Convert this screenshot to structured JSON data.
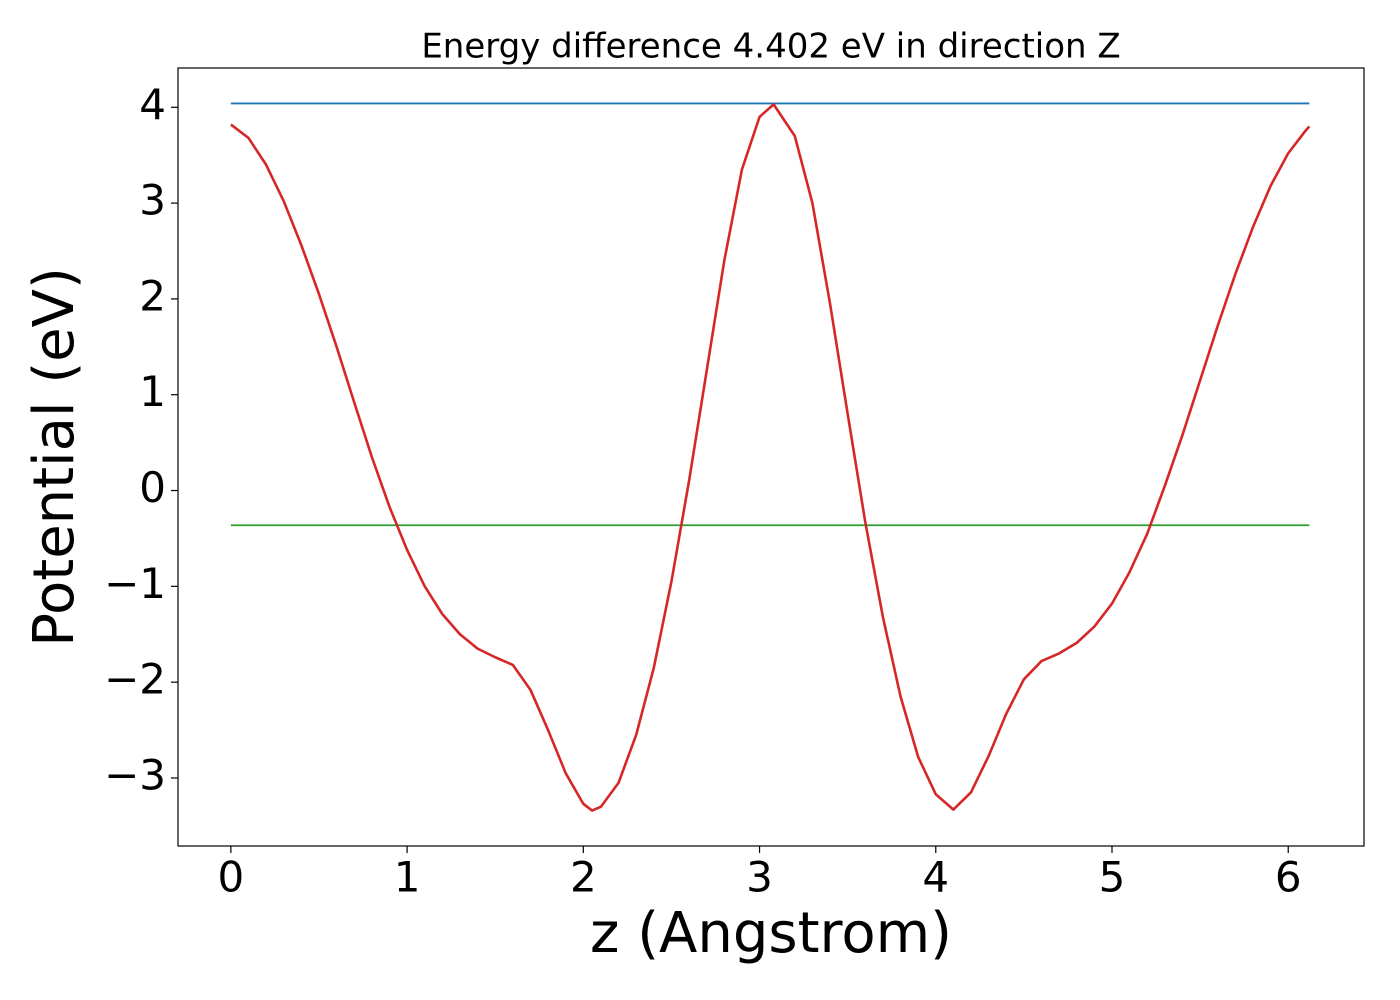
{
  "chart_data": {
    "type": "line",
    "title": "Energy difference 4.402 eV in direction Z",
    "xlabel": "z (Angstrom)",
    "ylabel": "Potential (eV)",
    "xlim": [
      -0.3,
      6.43
    ],
    "ylim": [
      -3.71,
      4.41
    ],
    "xticks": [
      0,
      1,
      2,
      3,
      4,
      5,
      6
    ],
    "yticks": [
      {
        "value": -3,
        "label": "−3"
      },
      {
        "value": -2,
        "label": "−2"
      },
      {
        "value": -1,
        "label": "−1"
      },
      0,
      1,
      2,
      3,
      4
    ],
    "grid": false,
    "series": [
      {
        "color": "#1f77b4",
        "x": [
          0,
          6.12
        ],
        "values": [
          4.04,
          4.04
        ]
      },
      {
        "color": "#2ca02c",
        "x": [
          0,
          6.12
        ],
        "values": [
          -0.362,
          -0.362
        ]
      },
      {
        "color": "#d62728",
        "x": [
          0,
          0.1,
          0.2,
          0.3,
          0.4,
          0.5,
          0.6,
          0.7,
          0.8,
          0.9,
          1.0,
          1.1,
          1.2,
          1.3,
          1.4,
          1.5,
          1.6,
          1.7,
          1.8,
          1.9,
          2.0,
          2.05,
          2.1,
          2.2,
          2.3,
          2.4,
          2.5,
          2.6,
          2.7,
          2.8,
          2.9,
          3.0,
          3.08,
          3.2,
          3.3,
          3.4,
          3.5,
          3.6,
          3.7,
          3.8,
          3.9,
          4.0,
          4.1,
          4.2,
          4.3,
          4.4,
          4.5,
          4.6,
          4.7,
          4.8,
          4.9,
          5.0,
          5.1,
          5.2,
          5.3,
          5.4,
          5.5,
          5.6,
          5.7,
          5.8,
          5.9,
          6.0,
          6.1,
          6.12
        ],
        "values": [
          3.82,
          3.68,
          3.4,
          3.02,
          2.56,
          2.05,
          1.5,
          0.92,
          0.35,
          -0.17,
          -0.62,
          -1.0,
          -1.29,
          -1.5,
          -1.65,
          -1.74,
          -1.82,
          -2.08,
          -2.5,
          -2.95,
          -3.27,
          -3.34,
          -3.3,
          -3.05,
          -2.55,
          -1.85,
          -0.95,
          0.1,
          1.25,
          2.4,
          3.35,
          3.9,
          4.03,
          3.7,
          3.0,
          1.95,
          0.8,
          -0.33,
          -1.32,
          -2.15,
          -2.78,
          -3.17,
          -3.33,
          -3.15,
          -2.77,
          -2.33,
          -1.97,
          -1.78,
          -1.7,
          -1.59,
          -1.42,
          -1.18,
          -0.85,
          -0.45,
          0.05,
          0.58,
          1.15,
          1.72,
          2.26,
          2.75,
          3.18,
          3.52,
          3.76,
          3.8
        ]
      }
    ]
  }
}
